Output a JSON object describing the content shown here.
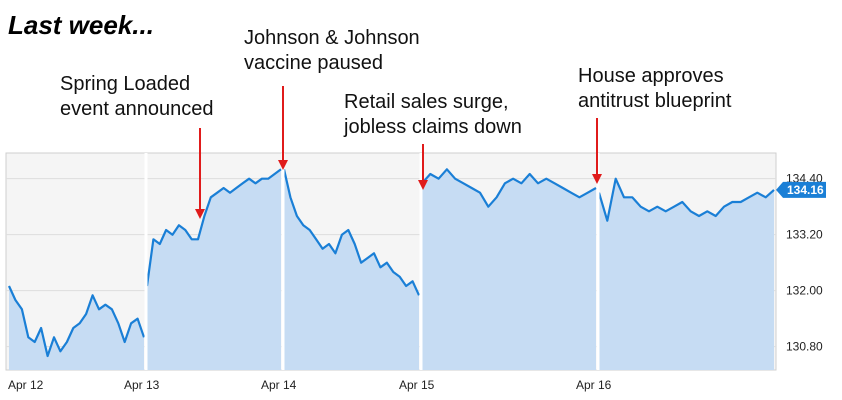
{
  "headline": "Last week...",
  "annotations": [
    {
      "lines": [
        "Spring Loaded",
        "event announced"
      ],
      "x": "Apr 13 12:00"
    },
    {
      "lines": [
        "Johnson & Johnson",
        "vaccine paused"
      ],
      "x": "Apr 14 00:00"
    },
    {
      "lines": [
        "Retail sales surge,",
        "jobless claims down"
      ],
      "x": "Apr 15 00:00"
    },
    {
      "lines": [
        "House approves",
        "antitrust blueprint"
      ],
      "x": "Apr 16 00:00"
    }
  ],
  "chart_data": {
    "type": "area",
    "title": "",
    "xlabel": "",
    "ylabel": "",
    "x_ticks": [
      "Apr 12",
      "Apr 13",
      "Apr 14",
      "Apr 15",
      "Apr 16"
    ],
    "y_ticks": [
      "134.40",
      "133.20",
      "132.00",
      "130.80"
    ],
    "ylim": [
      130.3,
      134.95
    ],
    "grid": true,
    "last_value_label": "134.16",
    "colors": {
      "line": "#1a7fd6",
      "fill": "#c6dcf3",
      "badge": "#1a7fd6",
      "annotation_arrow": "#e01b1b",
      "plot_bg": "#f5f5f5"
    },
    "series": [
      {
        "segments": [
          {
            "day": "Apr 12",
            "values": [
              132.1,
              131.8,
              131.6,
              131.0,
              130.9,
              131.2,
              130.6,
              131.0,
              130.7,
              130.9,
              131.2,
              131.3,
              131.5,
              131.9,
              131.6,
              131.7,
              131.6,
              131.3,
              130.9,
              131.3,
              131.4,
              131.0
            ]
          },
          {
            "day": "Apr 13",
            "values": [
              132.1,
              133.1,
              133.0,
              133.3,
              133.2,
              133.4,
              133.3,
              133.1,
              133.1,
              133.6,
              134.0,
              134.1,
              134.2,
              134.1,
              134.2,
              134.3,
              134.4,
              134.3,
              134.4,
              134.4,
              134.5,
              134.6
            ]
          },
          {
            "day": "Apr 14",
            "values": [
              134.6,
              134.0,
              133.6,
              133.4,
              133.3,
              133.1,
              132.9,
              133.0,
              132.8,
              133.2,
              133.3,
              133.0,
              132.6,
              132.7,
              132.8,
              132.5,
              132.6,
              132.4,
              132.3,
              132.1,
              132.2,
              131.9
            ]
          },
          {
            "day": "Apr 15",
            "values": [
              134.3,
              134.5,
              134.4,
              134.6,
              134.4,
              134.3,
              134.2,
              134.1,
              133.8,
              134.0,
              134.3,
              134.4,
              134.3,
              134.5,
              134.3,
              134.4,
              134.3,
              134.2,
              134.1,
              134.0,
              134.1,
              134.2
            ]
          },
          {
            "day": "Apr 16",
            "values": [
              134.1,
              133.5,
              134.4,
              134.0,
              134.0,
              133.8,
              133.7,
              133.8,
              133.7,
              133.8,
              133.9,
              133.7,
              133.6,
              133.7,
              133.6,
              133.8,
              133.9,
              133.9,
              134.0,
              134.1,
              134.0,
              134.16
            ]
          }
        ]
      }
    ]
  }
}
